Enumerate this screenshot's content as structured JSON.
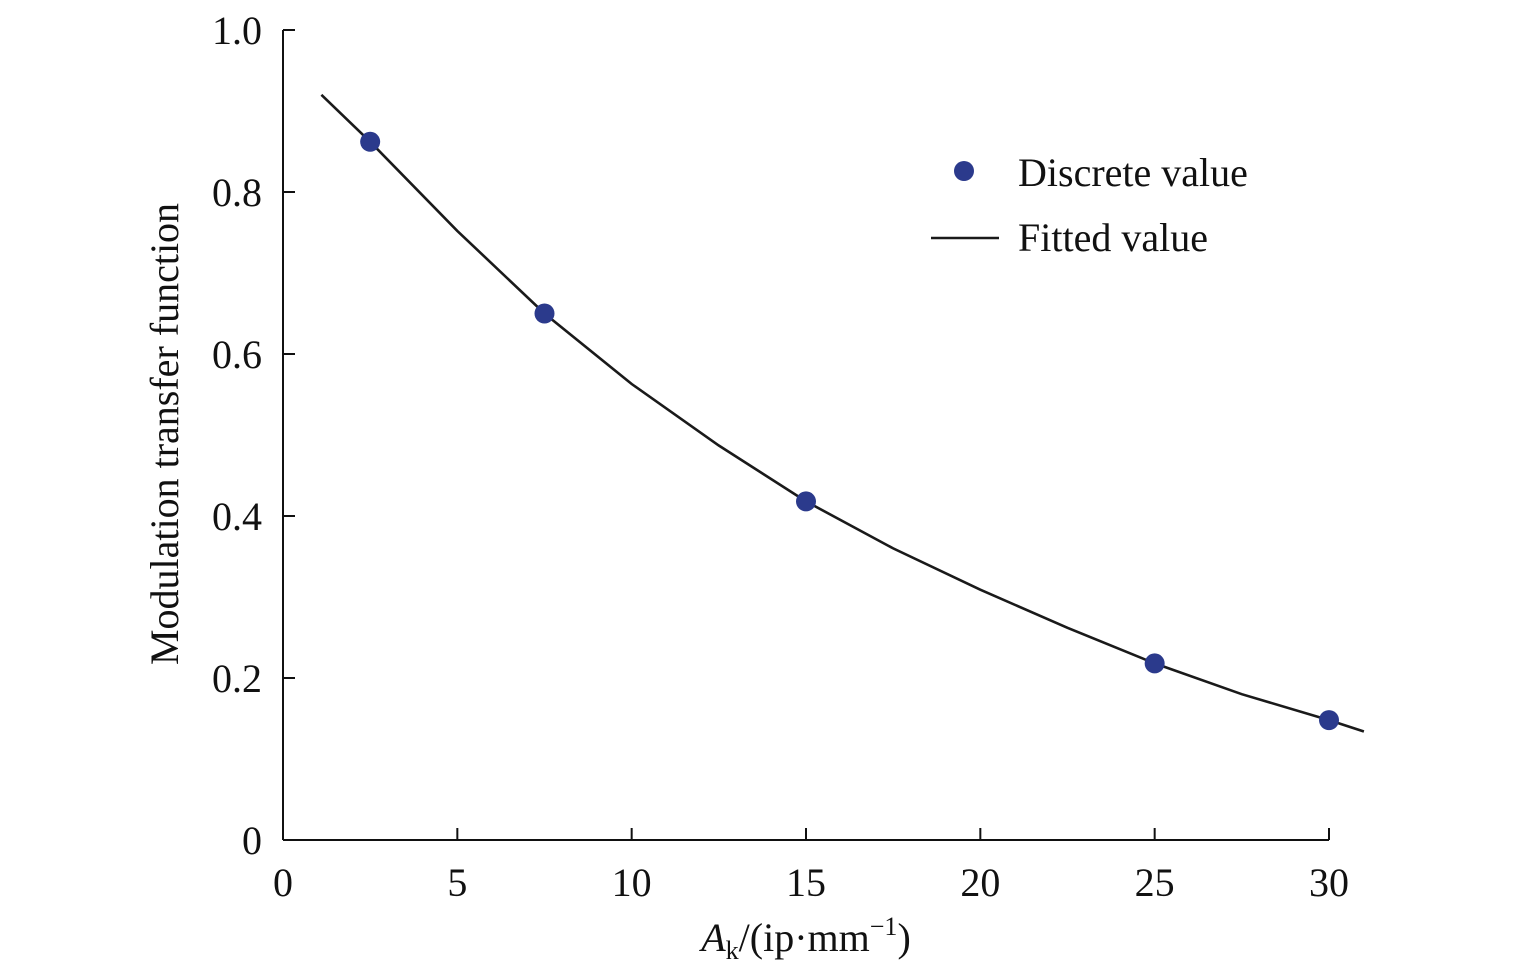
{
  "chart_data": {
    "type": "scatter",
    "title": "",
    "xlabel": {
      "main": "A",
      "sub": "k",
      "rest": "/(ip·mm",
      "sup": "−1",
      "close": ")"
    },
    "ylabel": "Modulation transfer function",
    "xlim": [
      0,
      31
    ],
    "ylim": [
      0,
      1.0
    ],
    "x_ticks": [
      0,
      5,
      10,
      15,
      20,
      25,
      30
    ],
    "y_ticks": [
      0,
      0.2,
      0.4,
      0.6,
      0.8,
      1.0
    ],
    "x_tick_labels": [
      "0",
      "5",
      "10",
      "15",
      "20",
      "25",
      "30"
    ],
    "y_tick_labels": [
      "0",
      "0.2",
      "0.4",
      "0.6",
      "0.8",
      "1.0"
    ],
    "grid": false,
    "legend_position": "top-right",
    "series": [
      {
        "name": "Discrete value",
        "kind": "scatter",
        "color": "#2b3a8c",
        "x": [
          2.5,
          7.5,
          15,
          25,
          30
        ],
        "y": [
          0.862,
          0.65,
          0.418,
          0.218,
          0.148
        ]
      },
      {
        "name": "Fitted value",
        "kind": "line",
        "color": "#1a1a1a",
        "x": [
          1.1,
          2.5,
          5,
          7.5,
          10,
          12.5,
          15,
          17.5,
          20,
          22.5,
          25,
          27.5,
          30,
          31
        ],
        "y": [
          0.92,
          0.862,
          0.752,
          0.65,
          0.563,
          0.487,
          0.418,
          0.36,
          0.309,
          0.262,
          0.218,
          0.18,
          0.148,
          0.134
        ]
      }
    ]
  }
}
